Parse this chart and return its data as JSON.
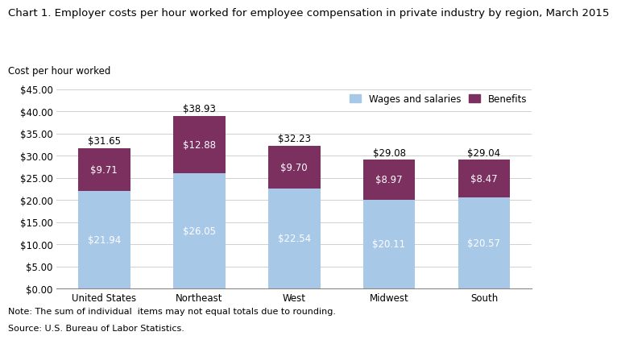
{
  "title": "Chart 1. Employer costs per hour worked for employee compensation in private industry by region, March 2015",
  "ylabel_above": "Cost per hour worked",
  "categories": [
    "United States",
    "Northeast",
    "West",
    "Midwest",
    "South"
  ],
  "wages": [
    21.94,
    26.05,
    22.54,
    20.11,
    20.57
  ],
  "benefits": [
    9.71,
    12.88,
    9.7,
    8.97,
    8.47
  ],
  "totals": [
    31.65,
    38.93,
    32.23,
    29.08,
    29.04
  ],
  "wages_color": "#a8c8e8",
  "benefits_color": "#7b3060",
  "ylim": [
    0,
    45
  ],
  "yticks": [
    0,
    5,
    10,
    15,
    20,
    25,
    30,
    35,
    40,
    45
  ],
  "legend_labels": [
    "Wages and salaries",
    "Benefits"
  ],
  "note_line1": "Note: The sum of individual  items may not equal totals due to rounding.",
  "note_line2": "Source: U.S. Bureau of Labor Statistics.",
  "title_fontsize": 9.5,
  "axis_label_fontsize": 8.5,
  "tick_fontsize": 8.5,
  "bar_label_fontsize": 8.5,
  "total_label_fontsize": 8.5,
  "note_fontsize": 8,
  "background_color": "#ffffff",
  "grid_color": "#d0d0d0"
}
